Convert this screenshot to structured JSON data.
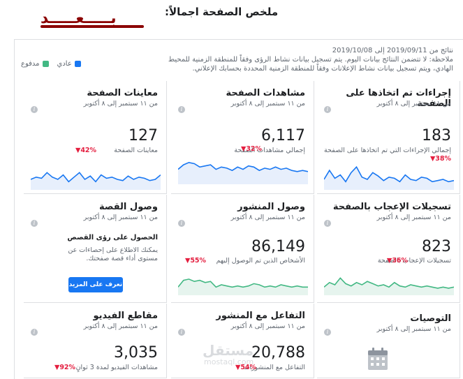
{
  "header": {
    "title": "ملخص الصفحة اجمالاً:",
    "after_label": "بـــــعـــــد"
  },
  "results": {
    "line1": "نتائج من 2019/09/11 إلى 2019/10/08",
    "line2": "ملاحظة: لا تتضمن النتائج بيانات اليوم. يتم تسجيل بيانات نشاط الرؤى وفقاً للمنطقة الزمنية للمحيط الهادي، ويتم تسجيل بيانات نشاط الإعلانات وفقاً للمنطقة الزمنية المحددة بحسابك الإعلاني."
  },
  "legend": {
    "organic": "عادي",
    "paid": "مدفوع",
    "organic_color": "#1877f2",
    "paid_color": "#42b883"
  },
  "date_range": "من ١١ سبتمبر إلى ٨ أكتوبر",
  "cards": {
    "actions": {
      "title": "إجراءات تم اتخاذها على الصفحة",
      "value": "183",
      "desc": "إجمالي الإجراءات التي تم اتخاذها على الصفحة",
      "delta": "38%",
      "spark": [
        0.4,
        0.8,
        0.45,
        0.6,
        0.3,
        0.7,
        0.95,
        0.5,
        0.4,
        0.7,
        0.55,
        0.35,
        0.5,
        0.45,
        0.3,
        0.6,
        0.4,
        0.35,
        0.5,
        0.45,
        0.3,
        0.35,
        0.4,
        0.3,
        0.35
      ]
    },
    "views": {
      "title": "مشاهدات الصفحة",
      "value": "6,117",
      "desc": "إجمالي مشاهدات الصفحة",
      "delta": "32%",
      "spark": [
        0.6,
        0.8,
        0.9,
        0.85,
        0.7,
        0.75,
        0.8,
        0.6,
        0.7,
        0.65,
        0.55,
        0.7,
        0.6,
        0.75,
        0.7,
        0.55,
        0.65,
        0.6,
        0.7,
        0.6,
        0.65,
        0.55,
        0.5,
        0.55,
        0.5
      ]
    },
    "previews": {
      "title": "معاينات الصفحة",
      "value": "127",
      "desc": "معاينات الصفحة",
      "delta": "42%",
      "spark": [
        0.4,
        0.5,
        0.45,
        0.7,
        0.5,
        0.4,
        0.6,
        0.3,
        0.5,
        0.7,
        0.4,
        0.55,
        0.3,
        0.6,
        0.45,
        0.5,
        0.4,
        0.35,
        0.55,
        0.4,
        0.5,
        0.45,
        0.35,
        0.4,
        0.6
      ]
    },
    "likes": {
      "title": "تسجيلات الإعجاب بالصفحة",
      "value": "823",
      "desc": "تسجيلات الإعجاب بالصفحة",
      "delta": "36%",
      "spark": [
        0.3,
        0.5,
        0.4,
        0.7,
        0.45,
        0.35,
        0.5,
        0.4,
        0.55,
        0.45,
        0.35,
        0.4,
        0.3,
        0.5,
        0.35,
        0.3,
        0.4,
        0.35,
        0.3,
        0.35,
        0.3,
        0.25,
        0.3,
        0.25,
        0.3
      ]
    },
    "reach": {
      "title": "وصول المنشور",
      "value": "86,149",
      "desc": "الأشخاص الذين تم الوصول إليهم",
      "delta": "55%",
      "spark": [
        0.3,
        0.6,
        0.65,
        0.55,
        0.6,
        0.5,
        0.55,
        0.3,
        0.4,
        0.35,
        0.3,
        0.35,
        0.3,
        0.35,
        0.45,
        0.4,
        0.3,
        0.35,
        0.3,
        0.4,
        0.35,
        0.3,
        0.35,
        0.3,
        0.3
      ]
    },
    "story": {
      "title": "وصول القصة",
      "heading": "الحصول على رؤى القصص",
      "text": "يمكنك الاطلاع على إحصاءات عن مستوى أداء قصة صفحتك.",
      "button": "تعرف على المزيد"
    },
    "recommendations": {
      "title": "التوصيات"
    },
    "engagement": {
      "title": "التفاعل مع المنشور",
      "value": "20,788",
      "desc": "التفاعل مع المنشورات",
      "delta": "54%"
    },
    "videos": {
      "title": "مقاطع الفيديو",
      "value": "3,035",
      "desc": "مشاهدات الفيديو لمدة 3 ثوانٍ",
      "delta": "92%"
    }
  },
  "watermark": {
    "brand": "مستقل",
    "domain": "mostaql.com"
  }
}
